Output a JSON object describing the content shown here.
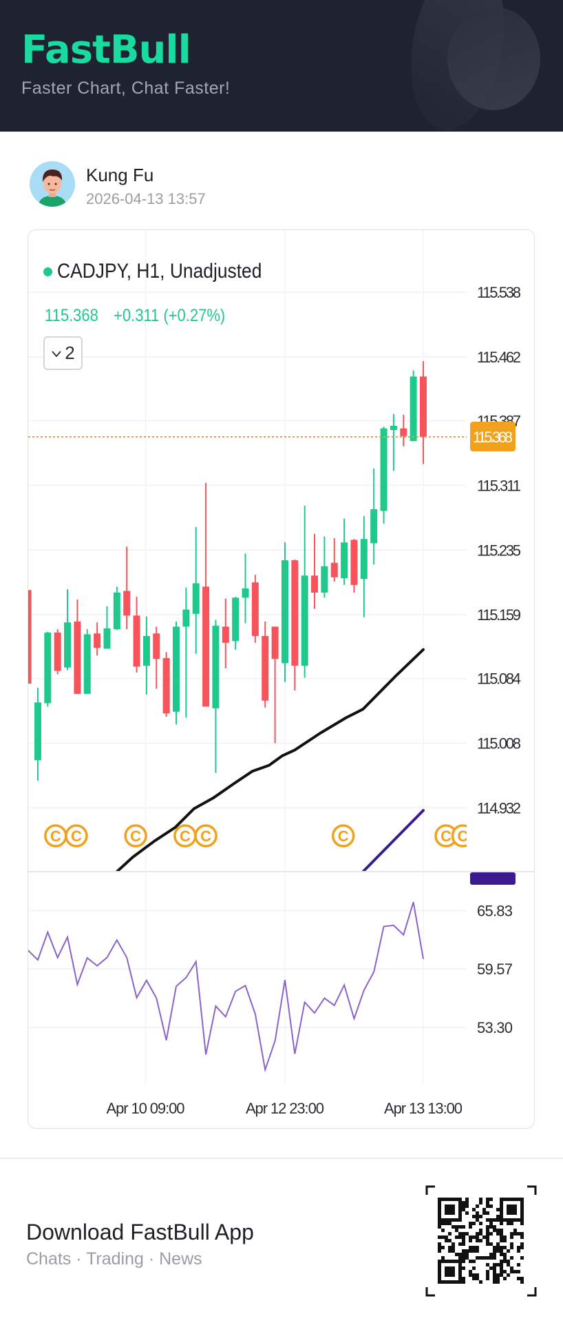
{
  "header": {
    "brand": "FastBull",
    "tagline": "Faster Chart, Chat Faster!"
  },
  "post": {
    "author": "Kung Fu",
    "timestamp": "2026-04-13 13:57"
  },
  "chart_data": {
    "type": "candlestick",
    "title": "CADJPY, H1, Unadjusted",
    "last_price": "115.368",
    "change": "+0.311 (+0.27%)",
    "indicator_count_label": "2",
    "current_price": 115.368,
    "colors": {
      "up": "#1ec98b",
      "down": "#f6535a",
      "price_line": "#f0a11e",
      "ma_black": "#111111",
      "ma_purple": "#3b1a8f",
      "rsi": "#8a63c8"
    },
    "ylim": [
      114.857,
      115.611
    ],
    "y_ticks": [
      "115.538",
      "115.462",
      "115.387",
      "115.311",
      "115.235",
      "115.159",
      "115.084",
      "115.008",
      "114.932"
    ],
    "x_ticks": [
      {
        "label": "Apr 10 09:00",
        "index": 11.9
      },
      {
        "label": "Apr 12 23:00",
        "index": 26.0
      },
      {
        "label": "Apr 13 13:00",
        "index": 40.0
      }
    ],
    "candles": [
      [
        115.188,
        115.188,
        115.078,
        115.078
      ],
      [
        114.988,
        115.073,
        114.964,
        115.056
      ],
      [
        115.055,
        115.139,
        115.051,
        115.138
      ],
      [
        115.138,
        115.142,
        115.089,
        115.093
      ],
      [
        115.097,
        115.189,
        115.094,
        115.15
      ],
      [
        115.151,
        115.177,
        115.066,
        115.066
      ],
      [
        115.066,
        115.142,
        115.066,
        115.136
      ],
      [
        115.137,
        115.15,
        115.111,
        115.12
      ],
      [
        115.119,
        115.169,
        115.119,
        115.143
      ],
      [
        115.142,
        115.192,
        115.141,
        115.185
      ],
      [
        115.187,
        115.239,
        115.142,
        115.158
      ],
      [
        115.158,
        115.18,
        115.091,
        115.098
      ],
      [
        115.099,
        115.157,
        115.065,
        115.134
      ],
      [
        115.137,
        115.145,
        115.072,
        115.107
      ],
      [
        115.108,
        115.115,
        115.039,
        115.043
      ],
      [
        115.045,
        115.151,
        115.03,
        115.145
      ],
      [
        115.145,
        115.191,
        115.038,
        115.165
      ],
      [
        115.16,
        115.262,
        115.113,
        115.196
      ],
      [
        115.192,
        115.314,
        115.051,
        115.051
      ],
      [
        115.049,
        115.153,
        114.973,
        115.146
      ],
      [
        115.145,
        115.178,
        115.096,
        115.126
      ],
      [
        115.128,
        115.18,
        115.118,
        115.179
      ],
      [
        115.179,
        115.231,
        115.149,
        115.19
      ],
      [
        115.197,
        115.206,
        115.126,
        115.134
      ],
      [
        115.134,
        115.151,
        115.05,
        115.058
      ],
      [
        115.145,
        115.145,
        115.008,
        115.107
      ],
      [
        115.102,
        115.244,
        115.08,
        115.223
      ],
      [
        115.223,
        115.224,
        115.07,
        115.099
      ],
      [
        115.099,
        115.287,
        115.085,
        115.205
      ],
      [
        115.205,
        115.254,
        115.166,
        115.185
      ],
      [
        115.185,
        115.251,
        115.179,
        115.216
      ],
      [
        115.22,
        115.249,
        115.198,
        115.203
      ],
      [
        115.202,
        115.272,
        115.194,
        115.244
      ],
      [
        115.247,
        115.248,
        115.185,
        115.194
      ],
      [
        115.201,
        115.275,
        115.156,
        115.248
      ],
      [
        115.243,
        115.331,
        115.218,
        115.283
      ],
      [
        115.281,
        115.38,
        115.266,
        115.378
      ],
      [
        115.376,
        115.395,
        115.328,
        115.381
      ],
      [
        115.378,
        115.394,
        115.357,
        115.369
      ],
      [
        115.363,
        115.446,
        115.363,
        115.439
      ],
      [
        115.439,
        115.457,
        115.336,
        115.368
      ]
    ],
    "candle_format": "open,high,low,close",
    "ma_black": [
      [
        9,
        114.857
      ],
      [
        10.6,
        114.874
      ],
      [
        12.8,
        114.893
      ],
      [
        14.9,
        114.909
      ],
      [
        16.8,
        114.931
      ],
      [
        18.8,
        114.944
      ],
      [
        20.9,
        114.961
      ],
      [
        22.7,
        114.975
      ],
      [
        24.4,
        114.982
      ],
      [
        25.7,
        114.993
      ],
      [
        27,
        115.0
      ],
      [
        29.6,
        115.02
      ],
      [
        32.2,
        115.038
      ],
      [
        33.9,
        115.048
      ],
      [
        35.6,
        115.068
      ],
      [
        37.3,
        115.088
      ],
      [
        40,
        115.118
      ]
    ],
    "ma_purple": [
      [
        33.9,
        114.857
      ],
      [
        40,
        114.929
      ]
    ],
    "event_markers": [
      2.8,
      4.9,
      10.9,
      15.9,
      18.0,
      31.9,
      42.3,
      44.0
    ],
    "rsi": {
      "ylim": [
        47.3,
        70.0
      ],
      "y_ticks": [
        "65.83",
        "59.57",
        "53.30"
      ],
      "values": [
        61.56,
        60.53,
        63.51,
        60.78,
        62.97,
        57.89,
        60.75,
        59.9,
        60.78,
        62.66,
        60.78,
        56.48,
        58.33,
        56.43,
        51.91,
        57.7,
        58.63,
        60.34,
        50.37,
        55.57,
        54.43,
        57.16,
        57.77,
        54.72,
        48.74,
        51.84,
        58.38,
        50.45,
        55.99,
        54.84,
        56.43,
        55.65,
        57.84,
        54.23,
        57.28,
        59.24,
        64.12,
        64.24,
        63.22,
        66.73,
        60.63
      ]
    }
  },
  "footer": {
    "title": "Download FastBull App",
    "subtitle": "Chats · Trading · News"
  }
}
